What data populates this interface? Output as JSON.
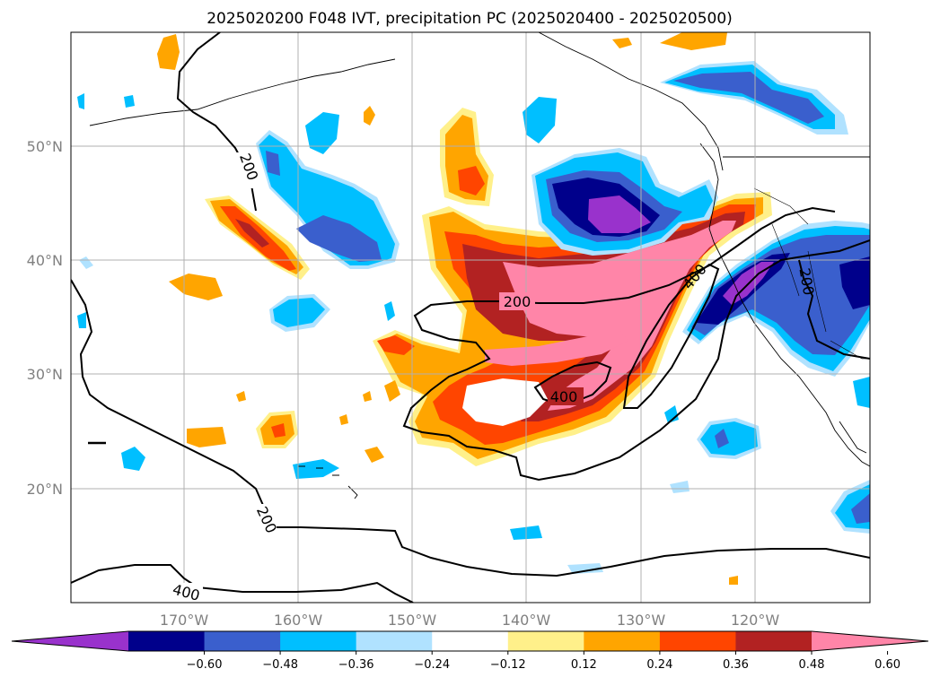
{
  "title": "2025020200 F048 IVT, precipitation PC (2025020400 - 2025020500)",
  "lon_labels": [
    "170°W",
    "160°W",
    "150°W",
    "140°W",
    "130°W",
    "120°W"
  ],
  "lat_labels": [
    "50°N",
    "40°N",
    "30°N",
    "20°N"
  ],
  "colorbar": {
    "ticks": [
      "−0.60",
      "−0.48",
      "−0.36",
      "−0.24",
      "−0.12",
      "0.12",
      "0.24",
      "0.36",
      "0.48",
      "0.60"
    ],
    "colors": [
      "#9932cc",
      "#00008b",
      "#3a5fcd",
      "#00bfff",
      "#b0e2ff",
      "#ffffff",
      "#fff08a",
      "#ffa500",
      "#ff4500",
      "#b22222",
      "#ff85a8"
    ]
  },
  "contour_labels": [
    "200",
    "200",
    "200",
    "200",
    "400",
    "400",
    "400"
  ]
}
